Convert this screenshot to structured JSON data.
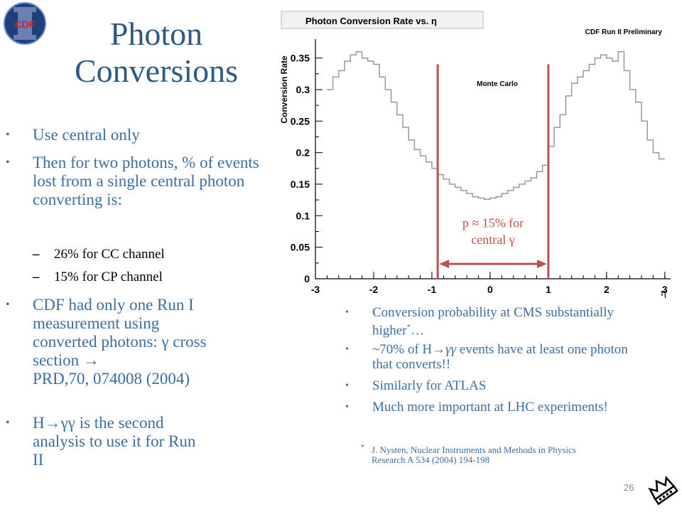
{
  "slide": {
    "logo_text": "CDF",
    "title_line1": "Photon",
    "title_line2": "Conversions",
    "left_bullets": [
      "Use central only",
      "Then for two photons, % of events lost from a single central photon converting is:",
      "CDF had only one Run I measurement using converted photons: γ cross section ",
      "H",
      " is the second analysis to use it for Run II"
    ],
    "ref_text": "PRD,70, 074008 (2004)",
    "arrow_glyph": "→",
    "gamma_gamma": "γγ",
    "sub_bullets": [
      "26% for CC channel",
      "15% for CP channel"
    ],
    "sub_dash": "–",
    "right_bullets": [
      "Conversion probability at CMS substantially higher",
      "…",
      "~70% of H",
      " events have at least one photon that converts!!",
      "Similarly for ATLAS",
      "Much more important at LHC experiments!"
    ],
    "star": "*",
    "footnote": "J. Nysten, Nuclear Instruments and Methods in Physics Research A 534 (2004) 194-198",
    "page_number": "26",
    "bullet_char": "•"
  },
  "chart_data": {
    "type": "line",
    "title": "Photon Conversion Rate vs. η",
    "subtitle": "CDF Run II Preliminary",
    "inner_label": "Monte Carlo",
    "ylabel": "Conversion Rate",
    "xlabel": "η",
    "xlim": [
      -3,
      3.1
    ],
    "ylim": [
      0,
      0.38
    ],
    "x_ticks": [
      "-3",
      "-2",
      "-1",
      "0",
      "1",
      "2",
      "3"
    ],
    "y_ticks": [
      "0",
      "0.05",
      "0.1",
      "0.15",
      "0.2",
      "0.25",
      "0.3",
      "0.35"
    ],
    "bin_edges": [
      -2.8,
      -2.7,
      -2.6,
      -2.5,
      -2.4,
      -2.3,
      -2.2,
      -2.1,
      -2.0,
      -1.9,
      -1.8,
      -1.7,
      -1.6,
      -1.5,
      -1.4,
      -1.3,
      -1.2,
      -1.1,
      -1.0,
      -0.9,
      -0.8,
      -0.7,
      -0.6,
      -0.5,
      -0.4,
      -0.3,
      -0.2,
      -0.1,
      0.0,
      0.1,
      0.2,
      0.3,
      0.4,
      0.5,
      0.6,
      0.7,
      0.8,
      0.9,
      1.0,
      1.1,
      1.2,
      1.3,
      1.4,
      1.5,
      1.6,
      1.7,
      1.8,
      1.9,
      2.0,
      2.1,
      2.2,
      2.3,
      2.4,
      2.5,
      2.6,
      2.7,
      2.8,
      2.9,
      3.0
    ],
    "values": [
      0.3,
      0.32,
      0.33,
      0.345,
      0.355,
      0.36,
      0.35,
      0.345,
      0.34,
      0.32,
      0.3,
      0.28,
      0.26,
      0.24,
      0.22,
      0.205,
      0.195,
      0.185,
      0.175,
      0.165,
      0.158,
      0.15,
      0.145,
      0.14,
      0.135,
      0.13,
      0.128,
      0.126,
      0.128,
      0.13,
      0.135,
      0.14,
      0.145,
      0.15,
      0.155,
      0.16,
      0.17,
      0.18,
      0.21,
      0.24,
      0.26,
      0.29,
      0.31,
      0.32,
      0.33,
      0.34,
      0.35,
      0.355,
      0.35,
      0.345,
      0.36,
      0.33,
      0.3,
      0.28,
      0.25,
      0.22,
      0.2,
      0.19
    ],
    "markers": [
      -0.9,
      1.0
    ],
    "annotation": {
      "text_line1": "p ≈ 15% for",
      "text_line2": "central γ",
      "color": "#c0504d"
    },
    "grid": false,
    "line_color": "#999999"
  }
}
